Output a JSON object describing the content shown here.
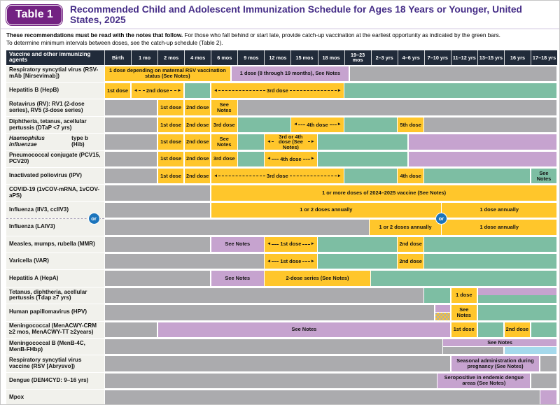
{
  "page": {
    "badge": "Table 1",
    "title": "Recommended Child and Adolescent Immunization Schedule for Ages 18 Years or Younger, United States, 2025"
  },
  "notes": {
    "lead": "These recommendations must be read with the notes that follow.",
    "rest": " For those who fall behind or start late, provide catch-up vaccination at the earliest opportunity as indicated by the green bars.",
    "line2": "To determine minimum intervals between doses, see the catch-up schedule (Table 2)."
  },
  "or_label": "or",
  "colors": {
    "recommended_yellow": "#FFC62B",
    "catchup_green": "#7DBEA3",
    "highrisk_purple": "#C6A3CF",
    "not_recommended_gray": "#ABABAE",
    "shared_decision_blue": "#A5D9EC",
    "header_navy": "#212B3A",
    "badge_purple": "#732282",
    "title_purple": "#452D87",
    "or_blue": "#1B74BC"
  },
  "table": {
    "corner": "Vaccine and other immunizing agents",
    "columns": [
      "Birth",
      "1 mo",
      "2 mos",
      "4 mos",
      "6 mos",
      "9 mos",
      "12 mos",
      "15 mos",
      "18 mos",
      "19–23 mos",
      "2–3 yrs",
      "4–6 yrs",
      "7–10 yrs",
      "11–12 yrs",
      "13–15 yrs",
      "16 yrs",
      "17–18 yrs"
    ],
    "rows": [
      {
        "label": "Respiratory syncytial virus (RSV-mAb [Nirsevimab])",
        "segments": [
          {
            "f": 0,
            "t": 4.75,
            "c": "yellow",
            "label": "1 dose depending on maternal RSV vaccination status (See Notes)"
          },
          {
            "f": 4.75,
            "t": 9.2,
            "c": "purple",
            "label": "1 dose (8 through 19 months), See Notes"
          },
          {
            "f": 9.2,
            "t": 17,
            "c": "gray"
          }
        ]
      },
      {
        "label": "Hepatitis B (HepB)",
        "segments": [
          {
            "f": 0,
            "t": 1,
            "c": "yellow",
            "label": "1st dose"
          },
          {
            "f": 1,
            "t": 3,
            "c": "yellow",
            "label": "2nd dose",
            "arrows": true
          },
          {
            "f": 3,
            "t": 4,
            "c": "green"
          },
          {
            "f": 4,
            "t": 9,
            "c": "yellow",
            "label": "3rd dose",
            "arrows": true
          },
          {
            "f": 9,
            "t": 17,
            "c": "green"
          }
        ]
      },
      {
        "label": "Rotavirus (RV): RV1 (2-dose series), RV5 (3-dose series)",
        "segments": [
          {
            "f": 0,
            "t": 2,
            "c": "gray"
          },
          {
            "f": 2,
            "t": 3,
            "c": "yellow",
            "label": "1st dose"
          },
          {
            "f": 3,
            "t": 4,
            "c": "yellow",
            "label": "2nd dose"
          },
          {
            "f": 4,
            "t": 5,
            "c": "yellow",
            "label": "See Notes"
          },
          {
            "f": 5,
            "t": 17,
            "c": "gray"
          }
        ]
      },
      {
        "label": "Diphtheria, tetanus, acellular pertussis (DTaP <7 yrs)",
        "segments": [
          {
            "f": 0,
            "t": 2,
            "c": "gray"
          },
          {
            "f": 2,
            "t": 3,
            "c": "yellow",
            "label": "1st dose"
          },
          {
            "f": 3,
            "t": 4,
            "c": "yellow",
            "label": "2nd dose"
          },
          {
            "f": 4,
            "t": 5,
            "c": "yellow",
            "label": "3rd dose"
          },
          {
            "f": 5,
            "t": 7,
            "c": "green"
          },
          {
            "f": 7,
            "t": 9,
            "c": "yellow",
            "label": "4th dose",
            "arrows": true
          },
          {
            "f": 9,
            "t": 11,
            "c": "green"
          },
          {
            "f": 11,
            "t": 12,
            "c": "yellow",
            "label": "5th dose"
          },
          {
            "f": 12,
            "t": 17,
            "c": "gray"
          }
        ]
      },
      {
        "label_italic": "Haemophilus influenzae",
        "label": " type b (Hib)",
        "segments": [
          {
            "f": 0,
            "t": 2,
            "c": "gray"
          },
          {
            "f": 2,
            "t": 3,
            "c": "yellow",
            "label": "1st dose"
          },
          {
            "f": 3,
            "t": 4,
            "c": "yellow",
            "label": "2nd dose"
          },
          {
            "f": 4,
            "t": 5,
            "c": "yellow",
            "label": "See Notes"
          },
          {
            "f": 5,
            "t": 6,
            "c": "green"
          },
          {
            "f": 6,
            "t": 8,
            "c": "yellow",
            "label": "3rd or 4th dose (See Notes)",
            "arrows": true
          },
          {
            "f": 8,
            "t": 11.4,
            "c": "green"
          },
          {
            "f": 11.4,
            "t": 17,
            "c": "purple"
          }
        ]
      },
      {
        "label": "Pneumococcal conjugate (PCV15, PCV20)",
        "segments": [
          {
            "f": 0,
            "t": 2,
            "c": "gray"
          },
          {
            "f": 2,
            "t": 3,
            "c": "yellow",
            "label": "1st dose"
          },
          {
            "f": 3,
            "t": 4,
            "c": "yellow",
            "label": "2nd dose"
          },
          {
            "f": 4,
            "t": 5,
            "c": "yellow",
            "label": "3rd dose"
          },
          {
            "f": 5,
            "t": 6,
            "c": "green"
          },
          {
            "f": 6,
            "t": 8,
            "c": "yellow",
            "label": "4th dose",
            "arrows": true
          },
          {
            "f": 8,
            "t": 11.4,
            "c": "green"
          },
          {
            "f": 11.4,
            "t": 17,
            "c": "purple"
          }
        ]
      },
      {
        "label": "Inactivated poliovirus (IPV)",
        "segments": [
          {
            "f": 0,
            "t": 2,
            "c": "gray"
          },
          {
            "f": 2,
            "t": 3,
            "c": "yellow",
            "label": "1st dose"
          },
          {
            "f": 3,
            "t": 4,
            "c": "yellow",
            "label": "2nd dose"
          },
          {
            "f": 4,
            "t": 9,
            "c": "yellow",
            "label": "3rd dose",
            "arrows": true
          },
          {
            "f": 9,
            "t": 11,
            "c": "green"
          },
          {
            "f": 11,
            "t": 12,
            "c": "yellow",
            "label": "4th dose"
          },
          {
            "f": 12,
            "t": 16,
            "c": "green"
          },
          {
            "f": 16,
            "t": 17,
            "c": "green",
            "label": "See Notes"
          }
        ]
      },
      {
        "label": "COVID-19 (1vCOV-mRNA, 1vCOV-aPS)",
        "segments": [
          {
            "f": 0,
            "t": 4,
            "c": "gray"
          },
          {
            "f": 4,
            "t": 17,
            "c": "yellow",
            "label": "1 or more doses of 2024–2025 vaccine (See Notes)"
          }
        ]
      },
      {
        "label": "Influenza (IIV3, ccIIV3)",
        "or_after": true,
        "segments": [
          {
            "f": 0,
            "t": 4,
            "c": "gray"
          },
          {
            "f": 4,
            "t": 12.65,
            "c": "yellow",
            "label": "1 or 2 doses annually"
          },
          {
            "f": 12.65,
            "t": 17,
            "c": "yellow",
            "label": "1 dose annually"
          }
        ]
      },
      {
        "label": "Influenza (LAIV3)",
        "segments": [
          {
            "f": 0,
            "t": 9.95,
            "c": "gray"
          },
          {
            "f": 9.95,
            "t": 12.65,
            "c": "yellow",
            "label": "1 or 2 doses annually"
          },
          {
            "f": 12.65,
            "t": 17,
            "c": "yellow",
            "label": "1 dose annually"
          }
        ]
      },
      {
        "label": "Measles, mumps, rubella (MMR)",
        "segments": [
          {
            "f": 0,
            "t": 4,
            "c": "gray"
          },
          {
            "f": 4,
            "t": 6,
            "c": "purple",
            "label": "See Notes"
          },
          {
            "f": 6,
            "t": 8,
            "c": "yellow",
            "label": "1st dose",
            "arrows": true
          },
          {
            "f": 8,
            "t": 11,
            "c": "green"
          },
          {
            "f": 11,
            "t": 12,
            "c": "yellow",
            "label": "2nd dose"
          },
          {
            "f": 12,
            "t": 17,
            "c": "green"
          }
        ]
      },
      {
        "label": "Varicella (VAR)",
        "segments": [
          {
            "f": 0,
            "t": 6,
            "c": "gray"
          },
          {
            "f": 6,
            "t": 8,
            "c": "yellow",
            "label": "1st dose",
            "arrows": true
          },
          {
            "f": 8,
            "t": 11,
            "c": "green"
          },
          {
            "f": 11,
            "t": 12,
            "c": "yellow",
            "label": "2nd dose"
          },
          {
            "f": 12,
            "t": 17,
            "c": "green"
          }
        ]
      },
      {
        "label": "Hepatitis A (HepA)",
        "segments": [
          {
            "f": 0,
            "t": 4,
            "c": "gray"
          },
          {
            "f": 4,
            "t": 6,
            "c": "purple",
            "label": "See Notes"
          },
          {
            "f": 6,
            "t": 10,
            "c": "yellow",
            "label": "2-dose series (See Notes)"
          },
          {
            "f": 10,
            "t": 17,
            "c": "green"
          }
        ]
      },
      {
        "label": "Tetanus, diphtheria, acellular pertussis (Tdap ≥7 yrs)",
        "segments": [
          {
            "f": 0,
            "t": 12,
            "c": "gray"
          },
          {
            "f": 12,
            "t": 13,
            "c": "green"
          },
          {
            "f": 13,
            "t": 14,
            "c": "yellow",
            "label": "1 dose"
          },
          {
            "f": 14,
            "t": 17,
            "c": "purple",
            "lane": "top"
          },
          {
            "f": 14,
            "t": 17,
            "c": "green",
            "lane": "bottom"
          }
        ]
      },
      {
        "label": "Human papillomavirus (HPV)",
        "segments": [
          {
            "f": 0,
            "t": 12.4,
            "c": "gray"
          },
          {
            "f": 12.4,
            "t": 13,
            "c": "purple",
            "lane": "top"
          },
          {
            "f": 12.4,
            "t": 13,
            "c": "checker",
            "lane": "bottom"
          },
          {
            "f": 13,
            "t": 14,
            "c": "yellow",
            "label": "See Notes"
          },
          {
            "f": 14,
            "t": 17,
            "c": "green"
          }
        ]
      },
      {
        "label": "Meningococcal (MenACWY-CRM ≥2 mos, MenACWY-TT ≥2years)",
        "segments": [
          {
            "f": 0,
            "t": 2,
            "c": "gray"
          },
          {
            "f": 2,
            "t": 13,
            "c": "purple",
            "label": "See Notes"
          },
          {
            "f": 13,
            "t": 14,
            "c": "yellow",
            "label": "1st dose"
          },
          {
            "f": 14,
            "t": 15,
            "c": "green"
          },
          {
            "f": 15,
            "t": 16,
            "c": "yellow",
            "label": "2nd dose"
          },
          {
            "f": 16,
            "t": 17,
            "c": "green"
          }
        ]
      },
      {
        "label": "Meningococcal B (MenB-4C, MenB-FHbp)",
        "segments": [
          {
            "f": 0,
            "t": 12.7,
            "c": "gray"
          },
          {
            "f": 12.7,
            "t": 17,
            "c": "purple",
            "label": "See Notes",
            "lane": "top"
          },
          {
            "f": 12.7,
            "t": 15,
            "c": "gray",
            "lane": "bottom"
          },
          {
            "f": 15,
            "t": 17,
            "c": "blue",
            "lane": "bottom"
          }
        ]
      },
      {
        "label": "Respiratory syncytial virus vaccine (RSV [Abrysvo])",
        "segments": [
          {
            "f": 0,
            "t": 13,
            "c": "gray"
          },
          {
            "f": 13,
            "t": 16.35,
            "c": "purple",
            "label": "Seasonal administration during pregnancy (See Notes)"
          },
          {
            "f": 16.35,
            "t": 17,
            "c": "gray"
          }
        ]
      },
      {
        "label": "Dengue (DEN4CYD: 9–16 yrs)",
        "segments": [
          {
            "f": 0,
            "t": 12.5,
            "c": "gray"
          },
          {
            "f": 12.5,
            "t": 16,
            "c": "purple",
            "label": "Seropositive in endemic dengue areas (See Notes)"
          },
          {
            "f": 16,
            "t": 17,
            "c": "gray"
          }
        ]
      },
      {
        "label": "Mpox",
        "segments": [
          {
            "f": 0,
            "t": 16.35,
            "c": "gray"
          },
          {
            "f": 16.35,
            "t": 17,
            "c": "purple"
          }
        ]
      }
    ]
  }
}
